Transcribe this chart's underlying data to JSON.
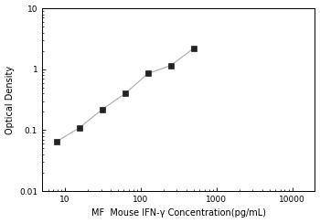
{
  "x": [
    7.8,
    15.6,
    31.25,
    62.5,
    125,
    250,
    500
  ],
  "y": [
    0.065,
    0.11,
    0.22,
    0.4,
    0.85,
    1.15,
    2.2
  ],
  "xlabel": "MF  Mouse IFN-γ Concentration(pg/mL)",
  "ylabel": "Optical Density",
  "xlim": [
    5,
    20000
  ],
  "ylim": [
    0.01,
    10
  ],
  "xticks": [
    10,
    100,
    1000,
    10000
  ],
  "xticklabels": [
    "10",
    "100",
    "1000",
    "10000"
  ],
  "yticks": [
    0.01,
    0.1,
    1,
    10
  ],
  "yticklabels": [
    "0.01",
    "0.1",
    "1",
    "10"
  ],
  "line_color": "#aaaaaa",
  "marker_color": "#222222",
  "marker": "s",
  "marker_size": 4,
  "line_style": "-",
  "line_width": 0.8,
  "xlabel_fontsize": 7,
  "ylabel_fontsize": 7,
  "tick_labelsize": 6.5
}
